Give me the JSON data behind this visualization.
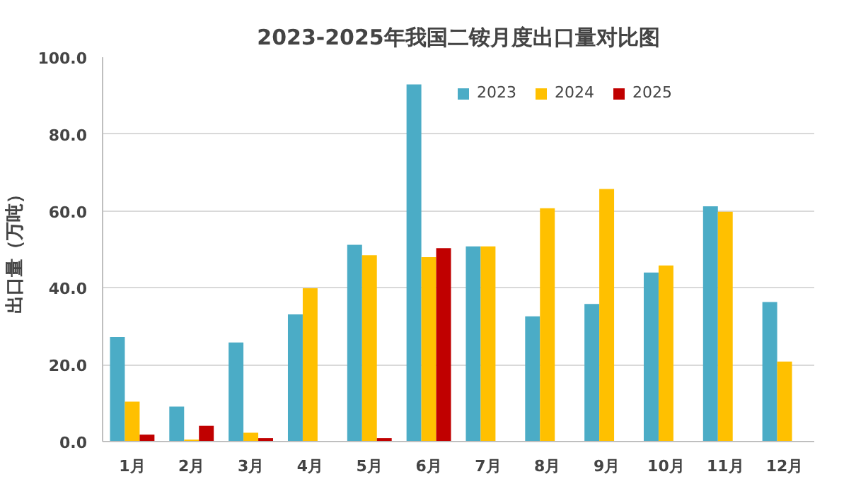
{
  "chart_data": {
    "type": "bar",
    "title": "2023-2025年我国二铵月度出口量对比图",
    "ylabel": "出口量（万吨）",
    "categories": [
      "1月",
      "2月",
      "3月",
      "4月",
      "5月",
      "6月",
      "7月",
      "8月",
      "9月",
      "10月",
      "11月",
      "12月"
    ],
    "series": [
      {
        "name": "2023",
        "color": "#4bacc6",
        "values": [
          27.2,
          9.1,
          25.8,
          33.1,
          51.2,
          92.9,
          50.8,
          32.6,
          35.8,
          44.0,
          61.2,
          36.3
        ]
      },
      {
        "name": "2024",
        "color": "#ffc000",
        "values": [
          10.4,
          0.5,
          2.3,
          39.9,
          48.5,
          48.0,
          50.8,
          60.7,
          65.7,
          45.8,
          59.8,
          20.8
        ]
      },
      {
        "name": "2025",
        "color": "#c00000",
        "values": [
          1.8,
          4.1,
          0.9,
          null,
          0.9,
          50.3,
          null,
          null,
          null,
          null,
          null,
          null
        ]
      }
    ],
    "ylim": [
      0,
      100
    ],
    "yticks": [
      {
        "value": 0,
        "label": "0.0"
      },
      {
        "value": 20,
        "label": "20.0"
      },
      {
        "value": 40,
        "label": "40.0"
      },
      {
        "value": 60,
        "label": "60.0"
      },
      {
        "value": 80,
        "label": "80.0"
      },
      {
        "value": 100,
        "label": "100.0"
      }
    ],
    "grid": "y",
    "legend": "top"
  }
}
